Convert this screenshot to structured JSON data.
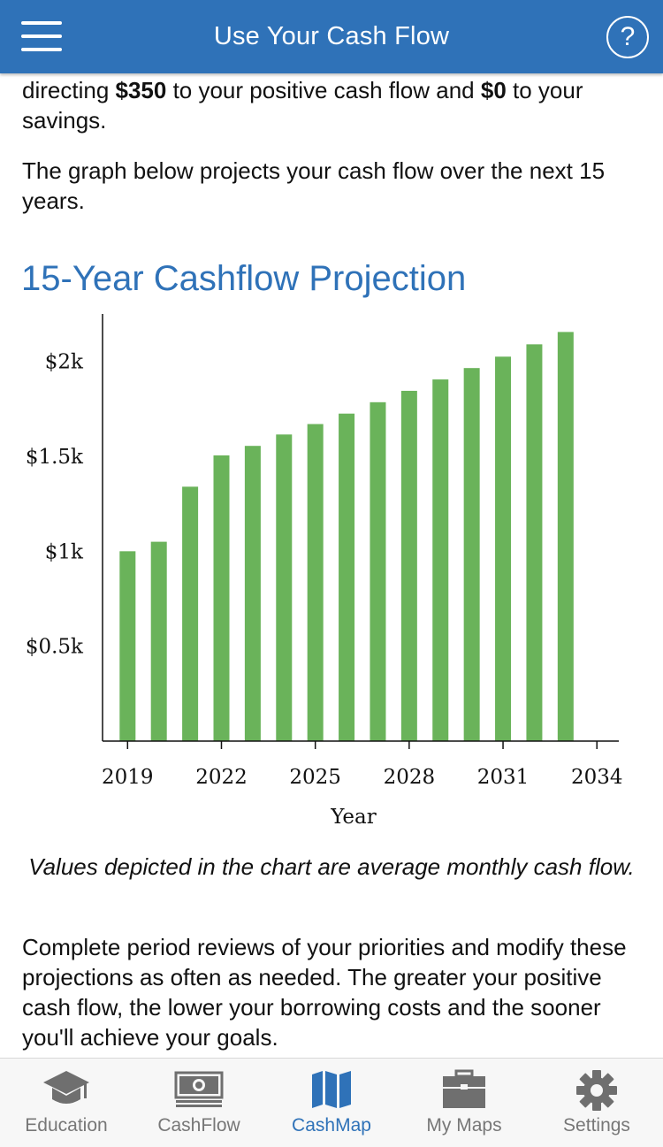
{
  "header": {
    "title": "Use Your Cash Flow",
    "help_label": "?"
  },
  "intro": {
    "seg1": "directing ",
    "amount_cash_flow": "$350",
    "seg2": " to your positive cash flow and ",
    "amount_savings": "$0",
    "seg3": " to your savings."
  },
  "projection_text": "The graph below projects your cash flow over the next 15 years.",
  "chart_title": "15-Year Cashflow Projection",
  "chart_data": {
    "type": "bar",
    "title": "15-Year Cashflow Projection",
    "xlabel": "Year",
    "ylabel": "",
    "x": [
      2019,
      2020,
      2021,
      2022,
      2023,
      2024,
      2025,
      2026,
      2027,
      2028,
      2029,
      2030,
      2031,
      2032,
      2033
    ],
    "values": [
      1000,
      1050,
      1340,
      1505,
      1555,
      1615,
      1670,
      1725,
      1785,
      1845,
      1905,
      1965,
      2025,
      2090,
      2155
    ],
    "xlim": [
      2018.2,
      2034.7
    ],
    "ylim": [
      0,
      2250
    ],
    "y_ticks": [
      {
        "value": 500,
        "label": "$0.5k"
      },
      {
        "value": 1000,
        "label": "$1k"
      },
      {
        "value": 1500,
        "label": "$1.5k"
      },
      {
        "value": 2000,
        "label": "$2k"
      }
    ],
    "x_ticks": [
      {
        "value": 2019,
        "label": "2019"
      },
      {
        "value": 2022,
        "label": "2022"
      },
      {
        "value": 2025,
        "label": "2025"
      },
      {
        "value": 2028,
        "label": "2028"
      },
      {
        "value": 2031,
        "label": "2031"
      },
      {
        "value": 2034,
        "label": "2034"
      }
    ],
    "bar_color": "#6ab35a",
    "grid": false
  },
  "chart_note": "Values depicted in the chart are average monthly cash flow.",
  "review_text": "Complete period reviews of your priorities and modify these projections as often as needed. The greater your positive cash flow, the lower your borrowing costs and the sooner you'll achieve your goals.",
  "tabs": [
    {
      "label": "Education",
      "icon": "graduation-cap-icon",
      "active": false
    },
    {
      "label": "CashFlow",
      "icon": "banknote-icon",
      "active": false
    },
    {
      "label": "CashMap",
      "icon": "map-icon",
      "active": true
    },
    {
      "label": "My Maps",
      "icon": "briefcase-icon",
      "active": false
    },
    {
      "label": "Settings",
      "icon": "gear-icon",
      "active": false
    }
  ],
  "colors": {
    "accent": "#2f72b8",
    "bar": "#6ab35a",
    "tab_inactive": "#777777"
  }
}
